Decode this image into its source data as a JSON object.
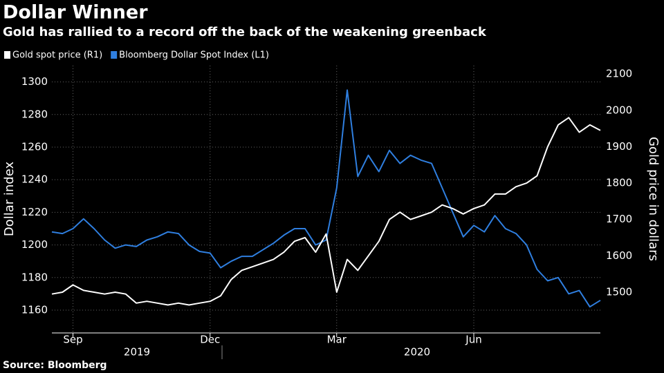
{
  "chart_data": {
    "type": "line",
    "title": "Dollar Winner",
    "subtitle": "Gold has rallied to a record off the back of the weakening greenback",
    "source": "Source: Bloomberg",
    "y_label": "Dollar index",
    "y2_label": "Gold price in dollars",
    "categories": [
      null,
      null,
      "Sep",
      null,
      null,
      null,
      null,
      null,
      null,
      null,
      null,
      null,
      null,
      null,
      null,
      "Dec",
      null,
      null,
      null,
      null,
      null,
      null,
      null,
      null,
      null,
      null,
      null,
      "Mar",
      null,
      null,
      null,
      null,
      null,
      null,
      null,
      null,
      null,
      null,
      null,
      null,
      "Jun",
      null,
      null,
      null,
      null,
      null,
      null,
      null,
      null,
      null,
      null,
      null,
      null
    ],
    "x_groups": [
      "2019",
      "2020"
    ],
    "series": [
      {
        "name": "Gold spot price (R1)",
        "color": "#ffffff",
        "axis": "y2",
        "values": [
          1495,
          1500,
          1520,
          1505,
          1500,
          1495,
          1500,
          1495,
          1470,
          1475,
          1470,
          1465,
          1470,
          1465,
          1470,
          1475,
          1490,
          1535,
          1560,
          1570,
          1580,
          1590,
          1610,
          1640,
          1650,
          1610,
          1660,
          1500,
          1590,
          1560,
          1600,
          1640,
          1700,
          1720,
          1700,
          1710,
          1720,
          1740,
          1730,
          1715,
          1730,
          1740,
          1770,
          1770,
          1790,
          1800,
          1820,
          1900,
          1960,
          1980,
          1940,
          1960,
          1945
        ]
      },
      {
        "name": "Bloomberg Dollar Spot Index (L1)",
        "color": "#2f7fe0",
        "axis": "y",
        "values": [
          1208,
          1207,
          1210,
          1216,
          1210,
          1203,
          1198,
          1200,
          1199,
          1203,
          1205,
          1208,
          1207,
          1200,
          1196,
          1195,
          1186,
          1190,
          1193,
          1193,
          1197,
          1201,
          1206,
          1210,
          1210,
          1200,
          1203,
          1235,
          1295,
          1242,
          1255,
          1245,
          1258,
          1250,
          1255,
          1252,
          1250,
          1235,
          1220,
          1205,
          1212,
          1208,
          1218,
          1210,
          1207,
          1200,
          1185,
          1178,
          1180,
          1170,
          1172,
          1162,
          1166
        ]
      }
    ],
    "ylim": [
      1146,
      1310
    ],
    "yticks": [
      1160,
      1180,
      1200,
      1220,
      1240,
      1260,
      1280,
      1300
    ],
    "y2lim": [
      1388,
      2123
    ],
    "y2ticks": [
      1500,
      1600,
      1700,
      1800,
      1900,
      2000,
      2100
    ],
    "grid": true
  }
}
